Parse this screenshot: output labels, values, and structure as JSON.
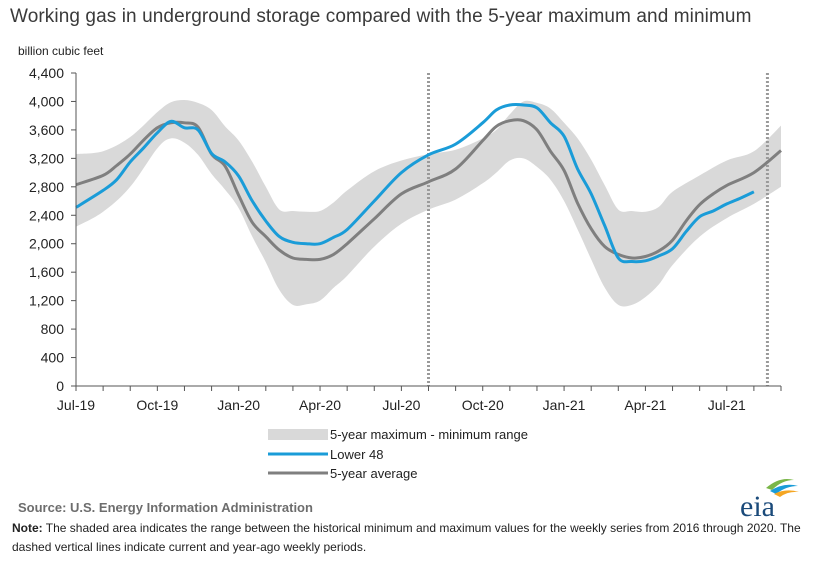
{
  "title": "Working gas in underground  storage compared with the 5-year maximum and minimum",
  "source": "Source:  U.S. Energy Information Administration",
  "note_label": "Note:",
  "note_text": " The shaded area indicates the range between the historical minimum and maximum values for the weekly series from 2016 through 2020. The dashed vertical lines indicate current and year-ago weekly periods.",
  "logo_text": "eia",
  "colors": {
    "range": "#d9d9d9",
    "lower48": "#1a9cd8",
    "avg": "#7f7f7f",
    "logo_text": "#1a4a7a",
    "logo_green": "#7ab648",
    "logo_blue": "#1a9cd8",
    "logo_orange": "#f5a623"
  },
  "chart_data": {
    "type": "area",
    "ylabel": "billion cubic feet",
    "y_ticks": [
      "0",
      "400",
      "800",
      "1,200",
      "1,600",
      "2,000",
      "2,400",
      "2,800",
      "3,200",
      "3,600",
      "4,000",
      "4,400"
    ],
    "y_tick_values": [
      0,
      400,
      800,
      1200,
      1600,
      2000,
      2400,
      2800,
      3200,
      3600,
      4000,
      4400
    ],
    "ylim": [
      0,
      4400
    ],
    "xlim": [
      0,
      26
    ],
    "x_ticks": [
      "Jul-19",
      "Oct-19",
      "Jan-20",
      "Apr-20",
      "Jul-20",
      "Oct-20",
      "Jan-21",
      "Apr-21",
      "Jul-21"
    ],
    "x_tick_values": [
      0,
      3,
      6,
      9,
      12,
      15,
      18,
      21,
      24
    ],
    "x_units": "months since Jul-19",
    "grid": false,
    "legend_position": "bottom",
    "legend": [
      "5-year maximum - minimum range",
      "Lower 48",
      "5-year average"
    ],
    "current_week": 25.5,
    "year_ago_week": 13.0,
    "range": {
      "name": "5-year maximum - minimum range",
      "x": [
        0,
        1,
        2,
        3,
        3.5,
        4,
        4.5,
        5,
        5.5,
        6,
        6.5,
        7,
        7.5,
        8,
        8.5,
        9,
        9.5,
        10,
        11,
        12,
        13,
        14,
        15,
        15.5,
        16,
        16.5,
        17,
        17.5,
        18,
        18.5,
        19,
        19.5,
        20,
        20.5,
        21,
        21.5,
        22,
        23,
        24,
        25,
        26
      ],
      "max": [
        3260,
        3300,
        3500,
        3850,
        3990,
        4020,
        3980,
        3880,
        3650,
        3450,
        3150,
        2800,
        2480,
        2460,
        2450,
        2460,
        2580,
        2750,
        3020,
        3170,
        3260,
        3320,
        3480,
        3600,
        3820,
        4000,
        3980,
        3900,
        3700,
        3480,
        3180,
        2820,
        2480,
        2460,
        2450,
        2520,
        2730,
        2960,
        3170,
        3300,
        3660
      ],
      "min": [
        2240,
        2450,
        2800,
        3340,
        3480,
        3420,
        3250,
        2980,
        2760,
        2500,
        2100,
        1740,
        1350,
        1140,
        1150,
        1200,
        1380,
        1550,
        1960,
        2280,
        2480,
        2620,
        2850,
        3000,
        3170,
        3200,
        3080,
        2900,
        2600,
        2200,
        1780,
        1380,
        1140,
        1140,
        1250,
        1430,
        1700,
        2100,
        2360,
        2560,
        2800
      ]
    },
    "series": [
      {
        "name": "Lower 48",
        "x": [
          0,
          1,
          1.5,
          2,
          2.5,
          3,
          3.5,
          4,
          4.5,
          5,
          5.5,
          6,
          6.5,
          7,
          7.5,
          8,
          8.5,
          9,
          9.5,
          10,
          11,
          12,
          13,
          14,
          15,
          15.5,
          16,
          16.5,
          17,
          17.5,
          18,
          18.5,
          19,
          19.5,
          20,
          20.5,
          21,
          21.5,
          22,
          22.5,
          23,
          23.5,
          24,
          24.5,
          25
        ],
        "values": [
          2510,
          2750,
          2900,
          3150,
          3350,
          3560,
          3720,
          3630,
          3600,
          3270,
          3150,
          2950,
          2600,
          2320,
          2100,
          2020,
          2000,
          2000,
          2090,
          2200,
          2600,
          3000,
          3250,
          3400,
          3700,
          3880,
          3950,
          3950,
          3910,
          3700,
          3510,
          3050,
          2700,
          2250,
          1800,
          1750,
          1760,
          1830,
          1930,
          2170,
          2380,
          2460,
          2560,
          2640,
          2730
        ]
      },
      {
        "name": "5-year average",
        "x": [
          0,
          1,
          1.5,
          2,
          2.5,
          3,
          3.5,
          4,
          4.5,
          5,
          5.5,
          6,
          6.5,
          7,
          7.5,
          8,
          8.5,
          9,
          9.5,
          10,
          11,
          12,
          13,
          14,
          15,
          15.5,
          16,
          16.5,
          17,
          17.5,
          18,
          18.5,
          19,
          19.5,
          20,
          20.5,
          21,
          21.5,
          22,
          22.5,
          23,
          23.5,
          24,
          25,
          26
        ],
        "values": [
          2830,
          2960,
          3100,
          3260,
          3460,
          3630,
          3700,
          3700,
          3640,
          3260,
          3090,
          2680,
          2300,
          2100,
          1910,
          1800,
          1780,
          1780,
          1850,
          2000,
          2350,
          2700,
          2870,
          3050,
          3450,
          3650,
          3730,
          3730,
          3600,
          3300,
          3030,
          2570,
          2210,
          1960,
          1850,
          1800,
          1820,
          1900,
          2050,
          2320,
          2550,
          2700,
          2820,
          3000,
          3310
        ]
      }
    ]
  }
}
